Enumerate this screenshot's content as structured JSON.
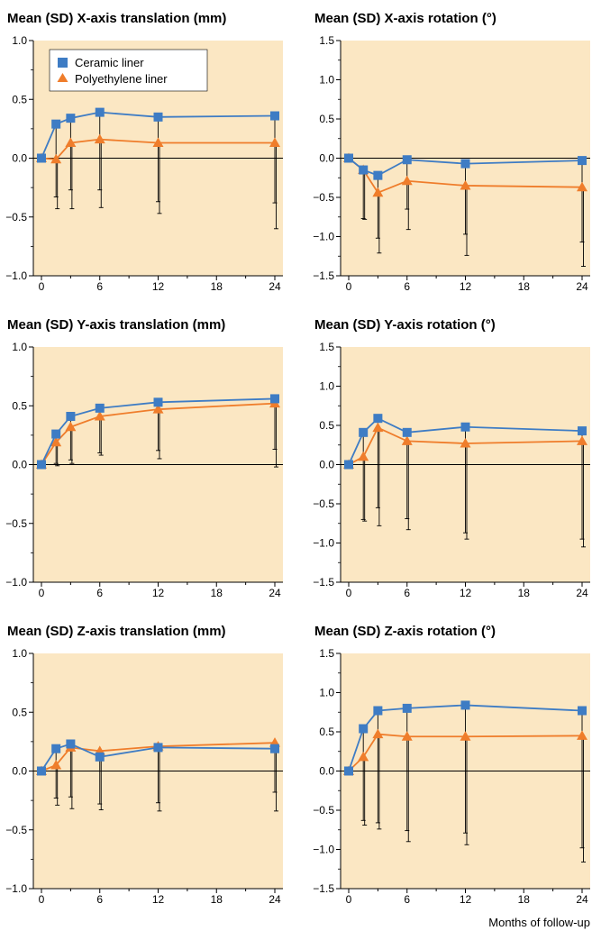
{
  "colors": {
    "plot_bg": "#fbe7c3",
    "ceramic": "#3e7cc4",
    "poly": "#ef7d2b",
    "error_bar": "#000000"
  },
  "legend": {
    "placement": "top-left",
    "items": [
      {
        "label": "Ceramic liner",
        "marker": "square",
        "color": "#3e7cc4"
      },
      {
        "label": "Polyethylene liner",
        "marker": "triangle",
        "color": "#ef7d2b"
      }
    ]
  },
  "footer": {
    "x_label": "Months of follow-up"
  },
  "chart_data": [
    {
      "type": "line",
      "title": "Mean (SD) X-axis translation (mm)",
      "x": [
        0,
        1.5,
        3,
        6,
        12,
        24
      ],
      "xlim": [
        0,
        24
      ],
      "ylim": [
        -1.0,
        1.0
      ],
      "xticks": [
        0,
        6,
        12,
        18,
        24
      ],
      "yticks": [
        -1.0,
        -0.5,
        0.0,
        0.5,
        1.0
      ],
      "ytick_labels": [
        "−1.0",
        "−0.5",
        "0.0",
        "0.5",
        "1.0"
      ],
      "series": [
        {
          "name": "Ceramic liner",
          "values": [
            0,
            0.29,
            0.34,
            0.39,
            0.35,
            0.36
          ],
          "sd_lower": [
            0,
            -0.33,
            -0.27,
            -0.27,
            -0.37,
            -0.38
          ]
        },
        {
          "name": "Polyethylene liner",
          "values": [
            0,
            -0.01,
            0.13,
            0.16,
            0.13,
            0.13
          ],
          "sd_lower": [
            0,
            -0.43,
            -0.43,
            -0.42,
            -0.47,
            -0.6
          ]
        }
      ]
    },
    {
      "type": "line",
      "title": "Mean (SD) X-axis rotation (°)",
      "x": [
        0,
        1.5,
        3,
        6,
        12,
        24
      ],
      "xlim": [
        0,
        24
      ],
      "ylim": [
        -1.5,
        1.5
      ],
      "xticks": [
        0,
        6,
        12,
        18,
        24
      ],
      "yticks": [
        -1.5,
        -1.0,
        -0.5,
        0.0,
        0.5,
        1.0,
        1.5
      ],
      "ytick_labels": [
        "−1.5",
        "−1.0",
        "−0.5",
        "0.0",
        "0.5",
        "1.0",
        "1.5"
      ],
      "series": [
        {
          "name": "Ceramic liner",
          "values": [
            0,
            -0.15,
            -0.22,
            -0.02,
            -0.07,
            -0.03
          ],
          "sd_lower": [
            0,
            -0.77,
            -1.02,
            -0.65,
            -0.97,
            -1.07
          ]
        },
        {
          "name": "Polyethylene liner",
          "values": [
            0,
            -0.15,
            -0.44,
            -0.29,
            -0.35,
            -0.37
          ],
          "sd_lower": [
            0,
            -0.78,
            -1.21,
            -0.91,
            -1.24,
            -1.38
          ]
        }
      ]
    },
    {
      "type": "line",
      "title": "Mean (SD) Y-axis translation (mm)",
      "x": [
        0,
        1.5,
        3,
        6,
        12,
        24
      ],
      "xlim": [
        0,
        24
      ],
      "ylim": [
        -1.0,
        1.0
      ],
      "xticks": [
        0,
        6,
        12,
        18,
        24
      ],
      "yticks": [
        -1.0,
        -0.5,
        0.0,
        0.5,
        1.0
      ],
      "ytick_labels": [
        "−1.0",
        "−0.5",
        "0.0",
        "0.5",
        "1.0"
      ],
      "series": [
        {
          "name": "Ceramic liner",
          "values": [
            0,
            0.26,
            0.41,
            0.48,
            0.53,
            0.56
          ],
          "sd_lower": [
            0,
            0.01,
            0.04,
            0.1,
            0.12,
            0.13
          ]
        },
        {
          "name": "Polyethylene liner",
          "values": [
            0,
            0.19,
            0.32,
            0.41,
            0.47,
            0.52
          ],
          "sd_lower": [
            0,
            -0.01,
            0.01,
            0.08,
            0.05,
            -0.02
          ]
        }
      ]
    },
    {
      "type": "line",
      "title": "Mean (SD) Y-axis rotation (°)",
      "x": [
        0,
        1.5,
        3,
        6,
        12,
        24
      ],
      "xlim": [
        0,
        24
      ],
      "ylim": [
        -1.5,
        1.5
      ],
      "xticks": [
        0,
        6,
        12,
        18,
        24
      ],
      "yticks": [
        -1.5,
        -1.0,
        -0.5,
        0.0,
        0.5,
        1.0,
        1.5
      ],
      "ytick_labels": [
        "−1.5",
        "−1.0",
        "−0.5",
        "0.0",
        "0.5",
        "1.0",
        "1.5"
      ],
      "series": [
        {
          "name": "Ceramic liner",
          "values": [
            0,
            0.41,
            0.59,
            0.41,
            0.48,
            0.43
          ],
          "sd_lower": [
            0,
            -0.7,
            -0.55,
            -0.69,
            -0.87,
            -0.95
          ]
        },
        {
          "name": "Polyethylene liner",
          "values": [
            0,
            0.1,
            0.47,
            0.3,
            0.27,
            0.3
          ],
          "sd_lower": [
            0,
            -0.72,
            -0.78,
            -0.83,
            -0.95,
            -1.05
          ]
        }
      ]
    },
    {
      "type": "line",
      "title": "Mean (SD) Z-axis translation (mm)",
      "x": [
        0,
        1.5,
        3,
        6,
        12,
        24
      ],
      "xlim": [
        0,
        24
      ],
      "ylim": [
        -1.0,
        1.0
      ],
      "xticks": [
        0,
        6,
        12,
        18,
        24
      ],
      "yticks": [
        -1.0,
        -0.5,
        0.0,
        0.5,
        1.0
      ],
      "ytick_labels": [
        "−1.0",
        "−0.5",
        "0.0",
        "0.5",
        "1.0"
      ],
      "series": [
        {
          "name": "Ceramic liner",
          "values": [
            0,
            0.19,
            0.23,
            0.12,
            0.2,
            0.19
          ],
          "sd_lower": [
            0,
            -0.23,
            -0.22,
            -0.28,
            -0.27,
            -0.18
          ]
        },
        {
          "name": "Polyethylene liner",
          "values": [
            0,
            0.05,
            0.2,
            0.17,
            0.21,
            0.24
          ],
          "sd_lower": [
            0,
            -0.29,
            -0.32,
            -0.33,
            -0.34,
            -0.34
          ]
        }
      ]
    },
    {
      "type": "line",
      "title": "Mean (SD) Z-axis rotation (°)",
      "x": [
        0,
        1.5,
        3,
        6,
        12,
        24
      ],
      "xlim": [
        0,
        24
      ],
      "ylim": [
        -1.5,
        1.5
      ],
      "xticks": [
        0,
        6,
        12,
        18,
        24
      ],
      "yticks": [
        -1.5,
        -1.0,
        -0.5,
        0.0,
        0.5,
        1.0,
        1.5
      ],
      "ytick_labels": [
        "−1.5",
        "−1.0",
        "−0.5",
        "0.0",
        "0.5",
        "1.0",
        "1.5"
      ],
      "series": [
        {
          "name": "Ceramic liner",
          "values": [
            0,
            0.54,
            0.77,
            0.8,
            0.84,
            0.77
          ],
          "sd_lower": [
            0,
            -0.63,
            -0.66,
            -0.76,
            -0.79,
            -0.98
          ]
        },
        {
          "name": "Polyethylene liner",
          "values": [
            0,
            0.18,
            0.47,
            0.44,
            0.44,
            0.45
          ],
          "sd_lower": [
            0,
            -0.69,
            -0.74,
            -0.9,
            -0.94,
            -1.16
          ]
        }
      ]
    }
  ]
}
